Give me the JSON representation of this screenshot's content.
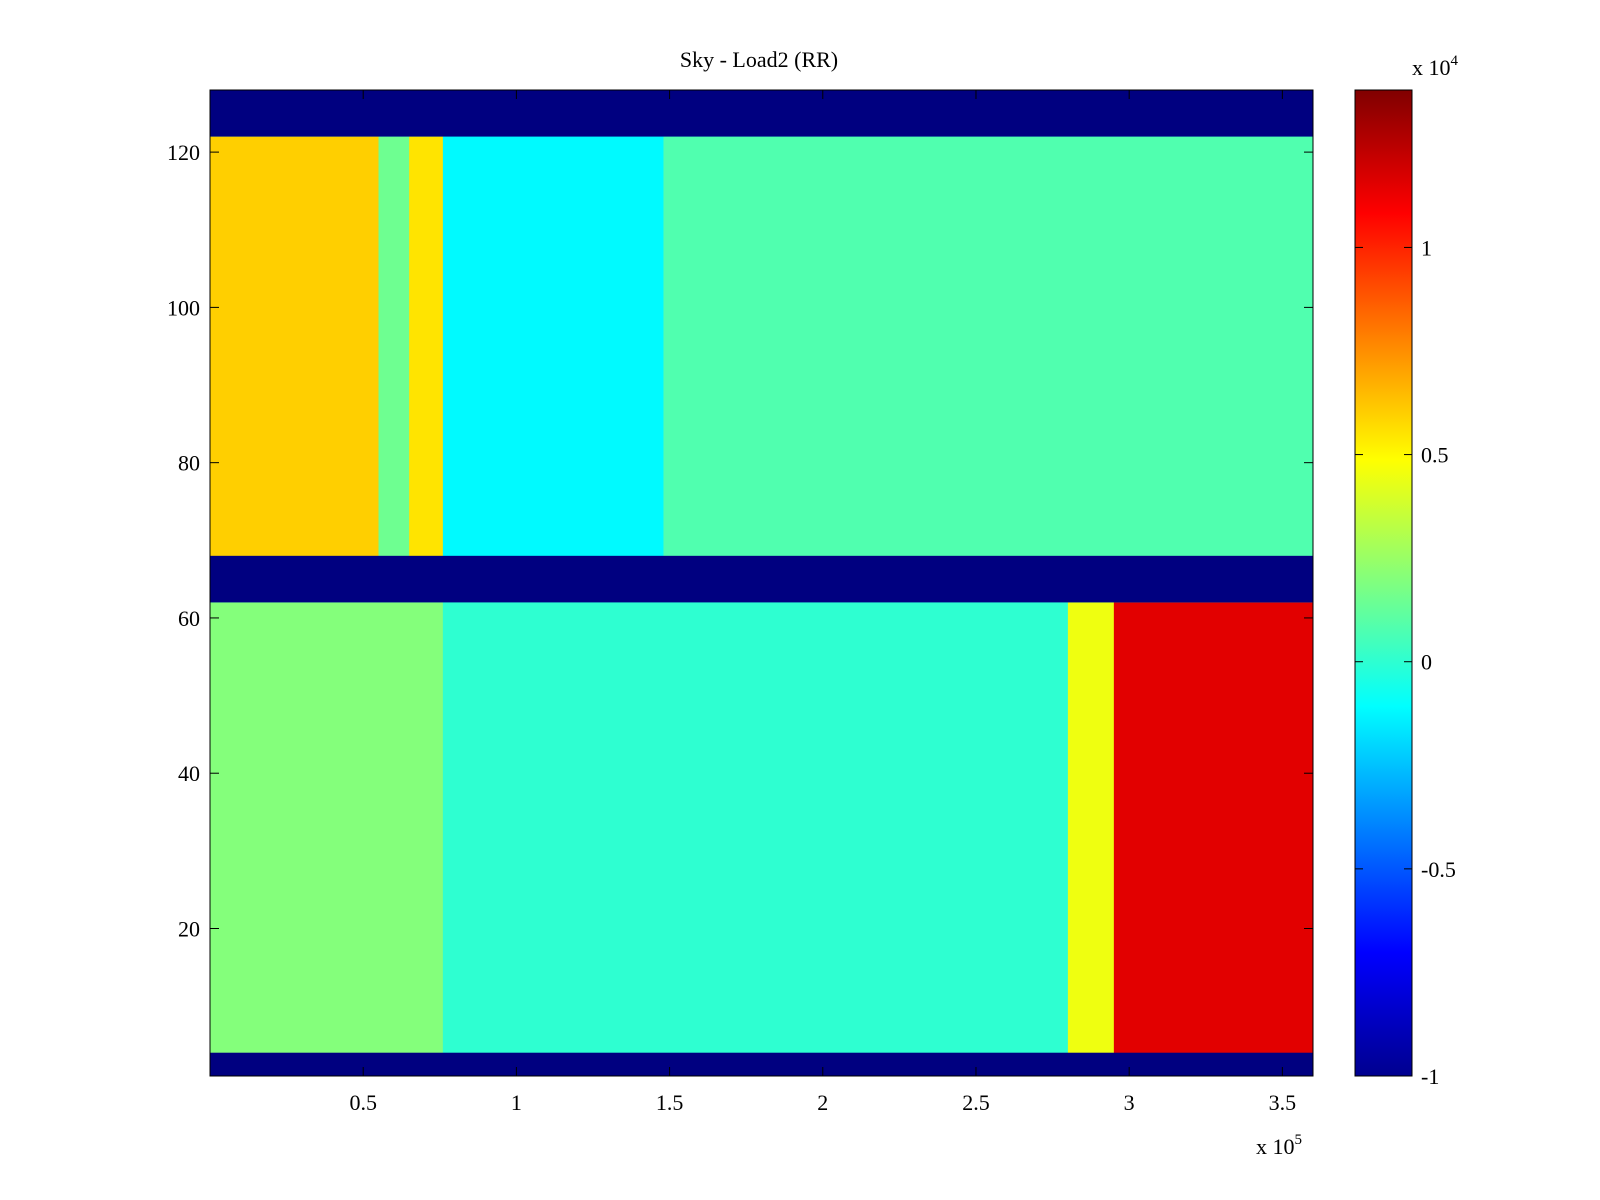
{
  "chart_data": {
    "type": "heatmap",
    "title": "Sky - Load2 (RR)",
    "xlabel": "",
    "ylabel": "",
    "x_exponent_label": "x 10",
    "x_exponent_power": "5",
    "xlim": [
      0,
      3.6
    ],
    "ylim": [
      1,
      128
    ],
    "x_ticks": [
      {
        "value": 0.5,
        "label": "0.5"
      },
      {
        "value": 1.0,
        "label": "1"
      },
      {
        "value": 1.5,
        "label": "1.5"
      },
      {
        "value": 2.0,
        "label": "2"
      },
      {
        "value": 2.5,
        "label": "2.5"
      },
      {
        "value": 3.0,
        "label": "3"
      },
      {
        "value": 3.5,
        "label": "3.5"
      }
    ],
    "y_ticks": [
      {
        "value": 20,
        "label": "20"
      },
      {
        "value": 40,
        "label": "40"
      },
      {
        "value": 60,
        "label": "60"
      },
      {
        "value": 80,
        "label": "80"
      },
      {
        "value": 100,
        "label": "100"
      },
      {
        "value": 120,
        "label": "120"
      }
    ],
    "colorbar": {
      "colormap": "jet",
      "exponent_label": "x 10",
      "exponent_power": "4",
      "range": [
        -1.0,
        1.38
      ],
      "ticks": [
        {
          "value": -1.0,
          "label": "-1"
        },
        {
          "value": -0.5,
          "label": "-0.5"
        },
        {
          "value": 0.0,
          "label": "0"
        },
        {
          "value": 0.5,
          "label": "0.5"
        },
        {
          "value": 1.0,
          "label": "1"
        }
      ]
    },
    "masked_channel_bands": [
      [
        1,
        4
      ],
      [
        62,
        68
      ],
      [
        122,
        128
      ]
    ],
    "regions": [
      {
        "channels": [
          68,
          122
        ],
        "x": [
          0,
          0.55
        ],
        "value": 0.6
      },
      {
        "channels": [
          68,
          122
        ],
        "x": [
          0.55,
          0.65
        ],
        "value": 0.15
      },
      {
        "channels": [
          68,
          122
        ],
        "x": [
          0.65,
          0.76
        ],
        "value": 0.55
      },
      {
        "channels": [
          68,
          122
        ],
        "x": [
          0.76,
          1.48
        ],
        "value": -0.12
      },
      {
        "channels": [
          68,
          122
        ],
        "x": [
          1.48,
          3.6
        ],
        "value": 0.08
      },
      {
        "channels": [
          4,
          62
        ],
        "x": [
          0,
          0.76
        ],
        "value": 0.2
      },
      {
        "channels": [
          4,
          62
        ],
        "x": [
          0.76,
          2.8
        ],
        "value": 0.0
      },
      {
        "channels": [
          4,
          62
        ],
        "x": [
          2.8,
          2.95
        ],
        "value": 0.45
      },
      {
        "channels": [
          4,
          62
        ],
        "x": [
          2.95,
          3.6
        ],
        "value": 1.15
      }
    ]
  }
}
